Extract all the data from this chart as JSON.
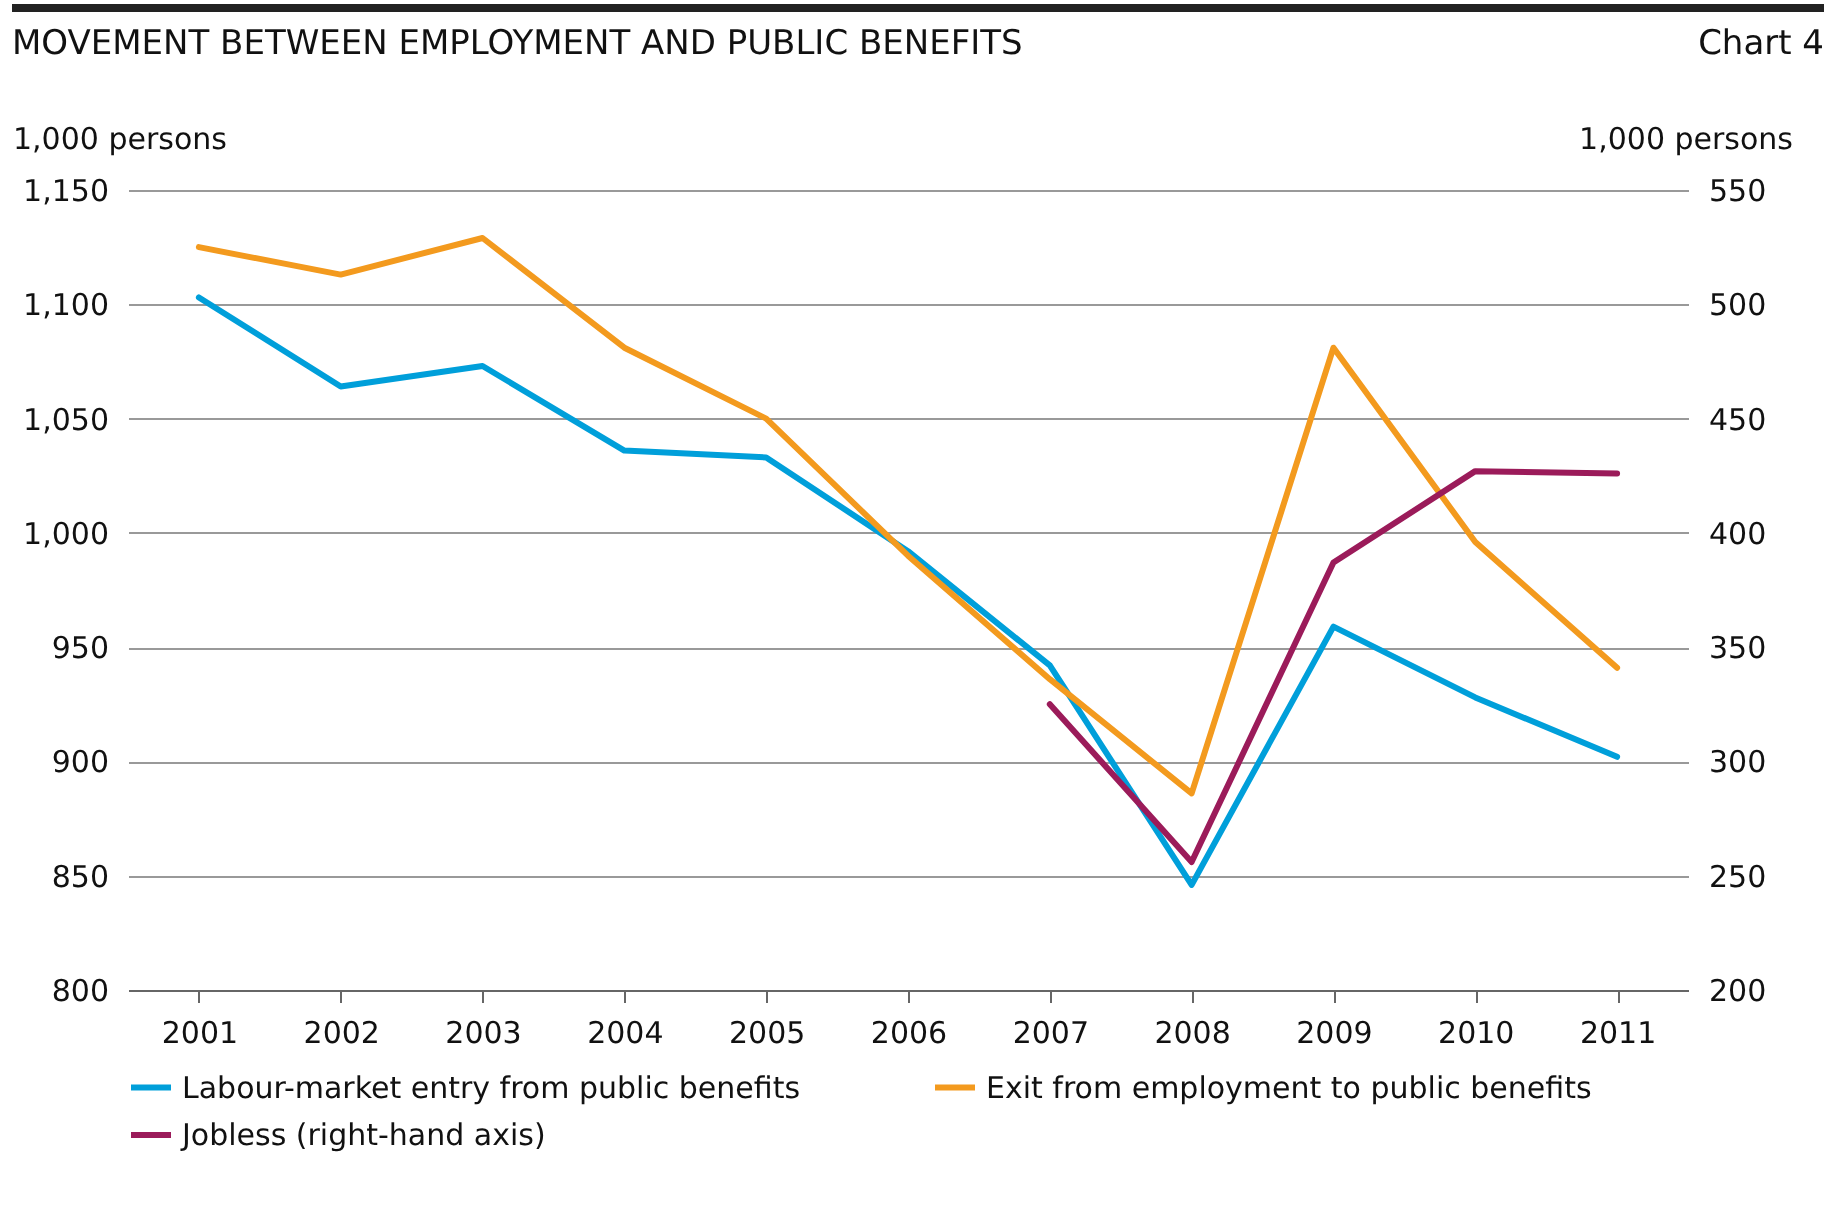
{
  "chart_data": {
    "type": "line",
    "title": "MOVEMENT BETWEEN EMPLOYMENT AND PUBLIC BENEFITS",
    "annotations": [
      "Chart 4"
    ],
    "ylabel": "1,000 persons",
    "y2label": "1,000 persons",
    "categories": [
      "2001",
      "2002",
      "2003",
      "2004",
      "2005",
      "2006",
      "2007",
      "2008",
      "2009",
      "2010",
      "2011"
    ],
    "series": [
      {
        "name": "Labour-market entry from public benefits",
        "color": "#009fda",
        "values": [
          1103,
          1064,
          1073,
          1036,
          1033,
          992,
          942,
          846,
          959,
          928,
          902
        ]
      },
      {
        "name": "Exit from employment to public benefits",
        "color": "#f39a1e",
        "values": [
          1125,
          1113,
          1129,
          1081,
          1050,
          990,
          936,
          886,
          1081,
          996,
          941
        ]
      },
      {
        "name": "Jobless (right-hand axis)",
        "color": "#9b1b5a",
        "axis": "y2",
        "values": [
          null,
          null,
          null,
          null,
          null,
          null,
          325,
          256,
          387,
          427,
          426
        ]
      }
    ],
    "ylim": [
      800,
      1150
    ],
    "yticks": [
      800,
      850,
      900,
      950,
      {
        "value": 1000,
        "label": "1,000"
      },
      {
        "value": 1050,
        "label": "1,050"
      },
      {
        "value": 1100,
        "label": "1,100"
      },
      {
        "value": 1150,
        "label": "1,150"
      }
    ],
    "y2lim": [
      200,
      550
    ],
    "y2ticks": [
      200,
      250,
      300,
      350,
      400,
      450,
      500,
      550
    ],
    "grid": "y",
    "legend": "bottom",
    "line_style": "solid",
    "marker": "none"
  }
}
